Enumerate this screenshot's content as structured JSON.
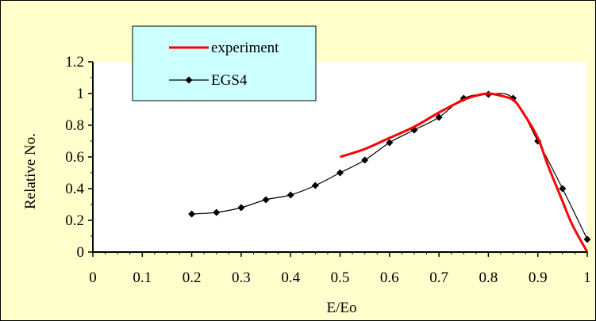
{
  "chart_data": {
    "type": "line",
    "xlabel": "E/Eo",
    "ylabel": "Relative No.",
    "xlim": [
      0,
      1
    ],
    "ylim": [
      0,
      1.2
    ],
    "x_ticks": [
      "0",
      "0.1",
      "0.2",
      "0.3",
      "0.4",
      "0.5",
      "0.6",
      "0.7",
      "0.8",
      "0.9",
      "1"
    ],
    "y_ticks": [
      "0",
      "0.2",
      "0.4",
      "0.6",
      "0.8",
      "1",
      "1.2"
    ],
    "grid": false,
    "legend_position": "top-left",
    "series": [
      {
        "name": "experiment",
        "color": "#ff0000",
        "marker": "none",
        "x": [
          0.5,
          0.55,
          0.6,
          0.65,
          0.7,
          0.75,
          0.78,
          0.8,
          0.82,
          0.85,
          0.87,
          0.9,
          0.92,
          0.95,
          0.97,
          1.0
        ],
        "y": [
          0.6,
          0.65,
          0.72,
          0.79,
          0.88,
          0.96,
          0.99,
          1.0,
          0.99,
          0.96,
          0.88,
          0.72,
          0.55,
          0.32,
          0.17,
          0.0
        ]
      },
      {
        "name": "EGS4",
        "color": "#000000",
        "marker": "diamond",
        "x": [
          0.2,
          0.25,
          0.3,
          0.35,
          0.4,
          0.45,
          0.5,
          0.55,
          0.6,
          0.65,
          0.7,
          0.75,
          0.8,
          0.85,
          0.9,
          0.95,
          1.0
        ],
        "y": [
          0.24,
          0.25,
          0.28,
          0.33,
          0.36,
          0.42,
          0.5,
          0.58,
          0.69,
          0.77,
          0.85,
          0.97,
          0.995,
          0.97,
          0.7,
          0.4,
          0.08
        ]
      }
    ]
  }
}
